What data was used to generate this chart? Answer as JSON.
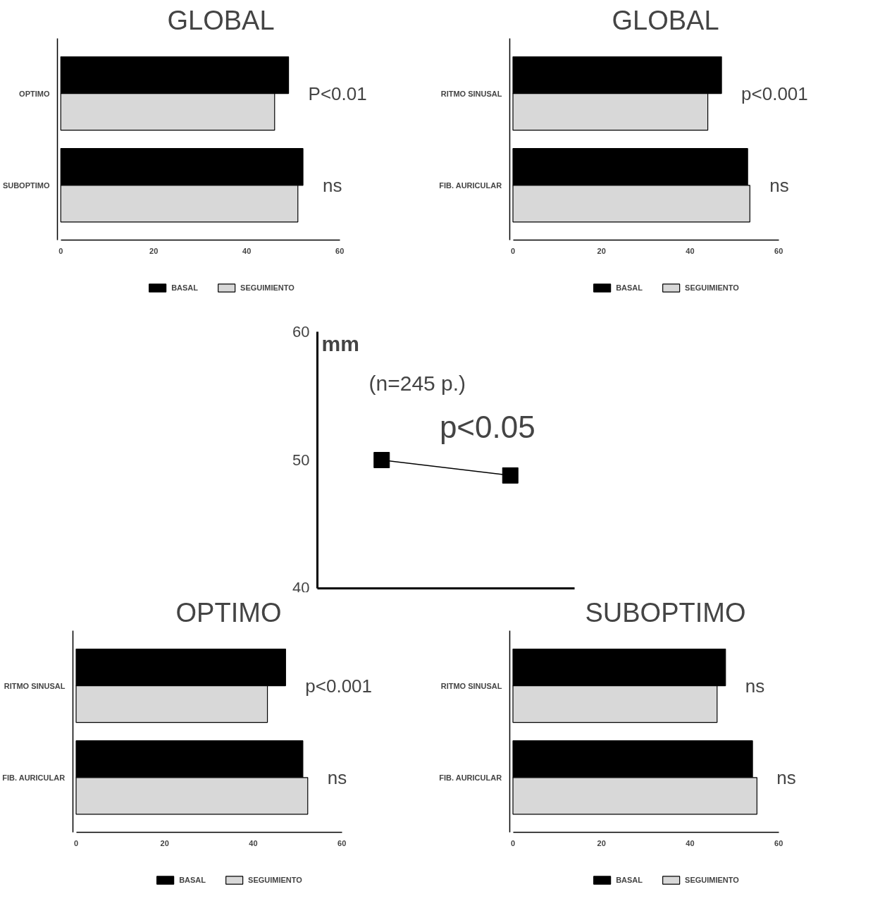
{
  "chart_data": [
    {
      "type": "bar",
      "orientation": "horizontal",
      "title": "GLOBAL",
      "categories": [
        "OPTIMO",
        "SUBOPTIMO"
      ],
      "series": [
        {
          "name": "BASAL",
          "color": "#000000",
          "values": [
            49.0,
            52.1
          ]
        },
        {
          "name": "SEGUIMIENTO",
          "color": "#d8d8d8",
          "values": [
            46.0,
            51.0
          ]
        }
      ],
      "xlim": [
        0,
        60
      ],
      "xticks": [
        0,
        20,
        40,
        60
      ],
      "legend": "bottom",
      "annotations": [
        "P<0.01",
        "ns"
      ]
    },
    {
      "type": "bar",
      "orientation": "horizontal",
      "title": "GLOBAL",
      "categories": [
        "RITMO SINUSAL",
        "FIB. AURICULAR"
      ],
      "series": [
        {
          "name": "BASAL",
          "color": "#000000",
          "values": [
            47.1,
            53.0
          ]
        },
        {
          "name": "SEGUIMIENTO",
          "color": "#d8d8d8",
          "values": [
            44.0,
            53.5
          ]
        }
      ],
      "xlim": [
        0,
        60
      ],
      "xticks": [
        0,
        20,
        40,
        60
      ],
      "legend": "bottom",
      "annotations": [
        "p<0.001",
        "ns"
      ]
    },
    {
      "type": "line",
      "categories": [
        null,
        null
      ],
      "ylabel": "mm",
      "series": [
        {
          "color": "#000000",
          "values": [
            50.0,
            48.8
          ]
        }
      ],
      "ylim": [
        40,
        60
      ],
      "yticks": [
        40,
        50,
        60
      ],
      "marker": "square",
      "annotations": [
        "(n=245 p.)",
        "p<0.05"
      ]
    },
    {
      "type": "bar",
      "orientation": "horizontal",
      "title": "OPTIMO",
      "categories": [
        "RITMO SINUSAL",
        "FIB. AURICULAR"
      ],
      "series": [
        {
          "name": "BASAL",
          "color": "#000000",
          "values": [
            47.3,
            51.2
          ]
        },
        {
          "name": "SEGUIMIENTO",
          "color": "#d8d8d8",
          "values": [
            43.2,
            52.3
          ]
        }
      ],
      "xlim": [
        0,
        60
      ],
      "xticks": [
        0,
        20,
        40,
        60
      ],
      "legend": "bottom",
      "annotations": [
        "p<0.001",
        "ns"
      ]
    },
    {
      "type": "bar",
      "orientation": "horizontal",
      "title": "SUBOPTIMO",
      "categories": [
        "RITMO SINUSAL",
        "FIB. AURICULAR"
      ],
      "series": [
        {
          "name": "BASAL",
          "color": "#000000",
          "values": [
            48.0,
            54.1
          ]
        },
        {
          "name": "SEGUIMIENTO",
          "color": "#d8d8d8",
          "values": [
            46.1,
            55.1
          ]
        }
      ],
      "xlim": [
        0,
        60
      ],
      "xticks": [
        0,
        20,
        40,
        60
      ],
      "legend": "bottom",
      "annotations": [
        "ns",
        "ns"
      ]
    }
  ]
}
